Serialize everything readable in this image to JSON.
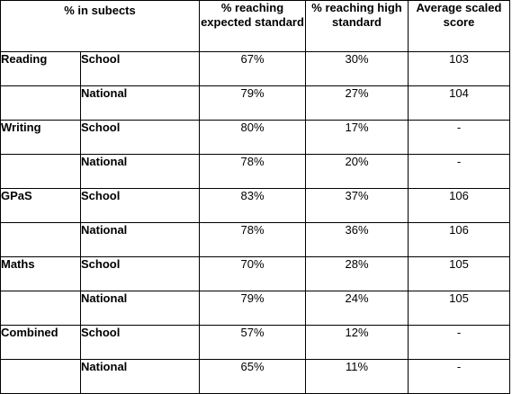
{
  "headers": {
    "subjects": "% in subects",
    "expected": "% reaching expected standard",
    "high": "% reaching high standard",
    "average": "Average scaled score"
  },
  "rows": [
    {
      "subject": "Reading",
      "group": "School",
      "expected": "67%",
      "high": "30%",
      "average": "103"
    },
    {
      "subject": "",
      "group": "National",
      "expected": "79%",
      "high": "27%",
      "average": "104"
    },
    {
      "subject": "Writing",
      "group": "School",
      "expected": "80%",
      "high": "17%",
      "average": "-"
    },
    {
      "subject": "",
      "group": "National",
      "expected": "78%",
      "high": "20%",
      "average": "-"
    },
    {
      "subject": "GPaS",
      "group": "School",
      "expected": "83%",
      "high": "37%",
      "average": "106"
    },
    {
      "subject": "",
      "group": "National",
      "expected": "78%",
      "high": "36%",
      "average": "106"
    },
    {
      "subject": "Maths",
      "group": "School",
      "expected": "70%",
      "high": "28%",
      "average": "105"
    },
    {
      "subject": "",
      "group": "National",
      "expected": "79%",
      "high": "24%",
      "average": "105"
    },
    {
      "subject": "Combined",
      "group": "School",
      "expected": "57%",
      "high": "12%",
      "average": "-"
    },
    {
      "subject": "",
      "group": "National",
      "expected": "65%",
      "high": "11%",
      "average": "-"
    }
  ]
}
